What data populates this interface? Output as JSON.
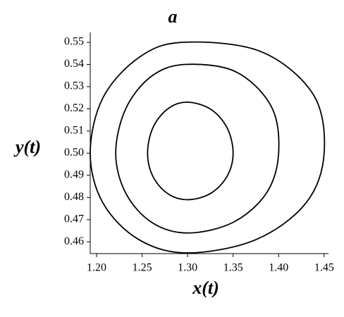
{
  "chart_data": {
    "type": "line",
    "title": "a",
    "x_label": "x(t)",
    "y_label": "y(t)",
    "xlim": [
      1.193,
      1.452
    ],
    "ylim": [
      0.4547,
      0.5516
    ],
    "xticks": [
      {
        "value": 1.2,
        "label": "1.20"
      },
      {
        "value": 1.25,
        "label": "1.25"
      },
      {
        "value": 1.3,
        "label": "1.30"
      },
      {
        "value": 1.35,
        "label": "1.35"
      },
      {
        "value": 1.4,
        "label": "1.40"
      },
      {
        "value": 1.45,
        "label": "1.45"
      }
    ],
    "yticks": [
      0.46,
      0.47,
      0.48,
      0.49,
      {
        "value": 0.5,
        "label": "0.50"
      },
      0.51,
      0.52,
      0.53,
      0.54,
      0.55
    ],
    "grid": false,
    "series": [
      {
        "color": "#000000",
        "x": [
          1.45,
          1.438,
          1.38,
          1.295,
          1.247,
          1.207,
          1.193,
          1.207,
          1.2465,
          1.3,
          1.375,
          1.43,
          1.45
        ],
        "y": [
          0.5,
          0.5265,
          0.5459,
          0.55,
          0.5433,
          0.525,
          0.5,
          0.4775,
          0.461,
          0.455,
          0.461,
          0.4775,
          0.5
        ]
      },
      {
        "color": "#000000",
        "x": [
          1.4,
          1.392,
          1.353,
          1.297,
          1.26,
          1.232,
          1.221,
          1.232,
          1.2605,
          1.3,
          1.35,
          1.3866,
          1.4
        ],
        "y": [
          0.5,
          0.521,
          0.5367,
          0.54,
          0.5346,
          0.52,
          0.5,
          0.482,
          0.4688,
          0.464,
          0.4688,
          0.482,
          0.5
        ]
      },
      {
        "color": "#000000",
        "x": [
          1.35,
          1.3433,
          1.325,
          1.299,
          1.278,
          1.2619,
          1.256,
          1.2619,
          1.278,
          1.3,
          1.325,
          1.3433,
          1.35
        ],
        "y": [
          0.5,
          0.5115,
          0.5199,
          0.523,
          0.5199,
          0.5115,
          0.5,
          0.4895,
          0.4818,
          0.479,
          0.4818,
          0.4895,
          0.5
        ]
      }
    ]
  }
}
